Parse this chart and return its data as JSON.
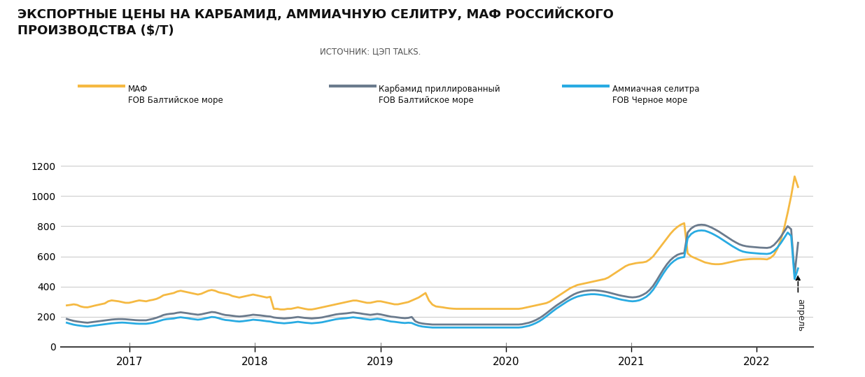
{
  "title_main": "ЭКСПОРТНЫЕ ЦЕНЫ НА КАРБАМИД, АММИАЧНУЮ СЕЛИТРУ, МАФ РОССИЙСКОГО\nПРОИЗВОДСТВА ($/Т)",
  "title_source": "ИСТОЧНИК: ЦЭП TALKS.",
  "legend": [
    {
      "label1": "МАФ",
      "label2": "FOB Балтийское море",
      "color": "#F5B942"
    },
    {
      "label1": "Карбамид приллированный",
      "label2": "FOB Балтийское море",
      "color": "#6B7B8D"
    },
    {
      "label1": "Аммиачная селитра",
      "label2": "FOB Черное море",
      "color": "#29ABE2"
    }
  ],
  "ylim": [
    0,
    1300
  ],
  "yticks": [
    0,
    200,
    400,
    600,
    800,
    1000,
    1200
  ],
  "background_color": "#FFFFFF",
  "april_label": "апрель",
  "maf": [
    275,
    278,
    282,
    278,
    268,
    263,
    262,
    267,
    273,
    278,
    283,
    288,
    302,
    308,
    305,
    302,
    297,
    292,
    292,
    297,
    303,
    308,
    305,
    302,
    308,
    312,
    318,
    328,
    342,
    347,
    352,
    357,
    367,
    372,
    367,
    362,
    357,
    352,
    347,
    352,
    362,
    372,
    377,
    372,
    362,
    357,
    352,
    347,
    337,
    332,
    327,
    332,
    337,
    342,
    347,
    342,
    337,
    332,
    327,
    332,
    252,
    252,
    248,
    248,
    252,
    252,
    257,
    262,
    257,
    252,
    248,
    248,
    252,
    257,
    262,
    267,
    272,
    277,
    282,
    287,
    292,
    297,
    302,
    307,
    307,
    302,
    297,
    292,
    292,
    297,
    302,
    302,
    297,
    292,
    287,
    282,
    282,
    287,
    292,
    297,
    307,
    317,
    327,
    342,
    357,
    307,
    280,
    268,
    265,
    262,
    258,
    255,
    253,
    252,
    252,
    252,
    252,
    252,
    252,
    252,
    252,
    252,
    252,
    252,
    252,
    252,
    252,
    252,
    252,
    252,
    252,
    252,
    255,
    260,
    265,
    270,
    275,
    280,
    285,
    290,
    300,
    315,
    330,
    345,
    360,
    375,
    390,
    400,
    410,
    415,
    420,
    425,
    430,
    435,
    440,
    445,
    450,
    460,
    475,
    490,
    505,
    520,
    535,
    545,
    550,
    555,
    558,
    560,
    565,
    580,
    600,
    630,
    660,
    690,
    720,
    750,
    775,
    795,
    810,
    820,
    620,
    600,
    590,
    580,
    570,
    560,
    555,
    550,
    548,
    548,
    550,
    555,
    560,
    565,
    570,
    575,
    578,
    580,
    582,
    583,
    583,
    583,
    582,
    580,
    590,
    610,
    650,
    710,
    790,
    890,
    1000,
    1130,
    1060
  ],
  "karbamid": [
    185,
    178,
    172,
    168,
    165,
    162,
    160,
    163,
    166,
    169,
    172,
    175,
    178,
    181,
    183,
    184,
    184,
    183,
    181,
    179,
    177,
    176,
    176,
    176,
    181,
    186,
    193,
    201,
    211,
    216,
    219,
    221,
    226,
    229,
    226,
    223,
    219,
    216,
    213,
    216,
    221,
    226,
    231,
    229,
    223,
    216,
    211,
    209,
    206,
    203,
    201,
    203,
    206,
    209,
    213,
    211,
    209,
    206,
    203,
    201,
    195,
    192,
    190,
    188,
    190,
    192,
    195,
    198,
    195,
    192,
    190,
    188,
    190,
    192,
    195,
    200,
    205,
    210,
    215,
    218,
    220,
    222,
    225,
    228,
    225,
    222,
    218,
    215,
    212,
    215,
    218,
    215,
    210,
    205,
    200,
    198,
    195,
    192,
    190,
    192,
    198,
    170,
    160,
    155,
    152,
    150,
    148,
    148,
    148,
    148,
    148,
    148,
    148,
    148,
    148,
    148,
    148,
    148,
    148,
    148,
    148,
    148,
    148,
    148,
    148,
    148,
    148,
    148,
    148,
    148,
    148,
    148,
    150,
    155,
    160,
    168,
    178,
    190,
    205,
    222,
    240,
    258,
    275,
    290,
    305,
    320,
    335,
    348,
    358,
    365,
    370,
    373,
    375,
    375,
    373,
    370,
    366,
    361,
    355,
    349,
    343,
    338,
    334,
    330,
    328,
    330,
    335,
    345,
    358,
    378,
    405,
    440,
    478,
    515,
    548,
    575,
    595,
    610,
    618,
    622,
    758,
    785,
    800,
    808,
    810,
    808,
    800,
    790,
    778,
    765,
    750,
    735,
    720,
    705,
    692,
    680,
    672,
    667,
    664,
    662,
    660,
    658,
    657,
    656,
    660,
    675,
    700,
    730,
    765,
    800,
    780,
    480,
    690
  ],
  "ammiak": [
    160,
    153,
    147,
    143,
    140,
    137,
    135,
    138,
    141,
    144,
    147,
    150,
    153,
    156,
    158,
    160,
    161,
    160,
    158,
    156,
    154,
    153,
    153,
    153,
    156,
    160,
    166,
    173,
    180,
    184,
    186,
    188,
    193,
    196,
    193,
    190,
    186,
    183,
    180,
    183,
    188,
    193,
    198,
    196,
    190,
    183,
    178,
    176,
    173,
    170,
    168,
    170,
    173,
    176,
    180,
    178,
    176,
    173,
    170,
    168,
    163,
    160,
    158,
    156,
    158,
    160,
    163,
    166,
    163,
    160,
    158,
    156,
    158,
    160,
    163,
    168,
    173,
    178,
    183,
    186,
    188,
    190,
    193,
    196,
    193,
    190,
    186,
    183,
    180,
    183,
    186,
    183,
    178,
    173,
    168,
    166,
    163,
    160,
    158,
    160,
    158,
    148,
    140,
    135,
    132,
    130,
    128,
    128,
    128,
    128,
    128,
    128,
    128,
    128,
    128,
    128,
    128,
    128,
    128,
    128,
    128,
    128,
    128,
    128,
    128,
    128,
    128,
    128,
    128,
    128,
    128,
    128,
    130,
    135,
    140,
    148,
    158,
    170,
    185,
    202,
    220,
    238,
    255,
    270,
    285,
    300,
    313,
    324,
    333,
    339,
    344,
    347,
    349,
    349,
    347,
    344,
    340,
    335,
    329,
    323,
    317,
    312,
    308,
    304,
    302,
    304,
    309,
    319,
    332,
    352,
    379,
    414,
    452,
    489,
    522,
    549,
    569,
    584,
    592,
    596,
    720,
    748,
    763,
    770,
    772,
    770,
    762,
    752,
    740,
    727,
    712,
    697,
    682,
    667,
    654,
    641,
    632,
    627,
    624,
    622,
    620,
    618,
    617,
    616,
    620,
    635,
    658,
    688,
    723,
    758,
    735,
    450,
    520
  ]
}
